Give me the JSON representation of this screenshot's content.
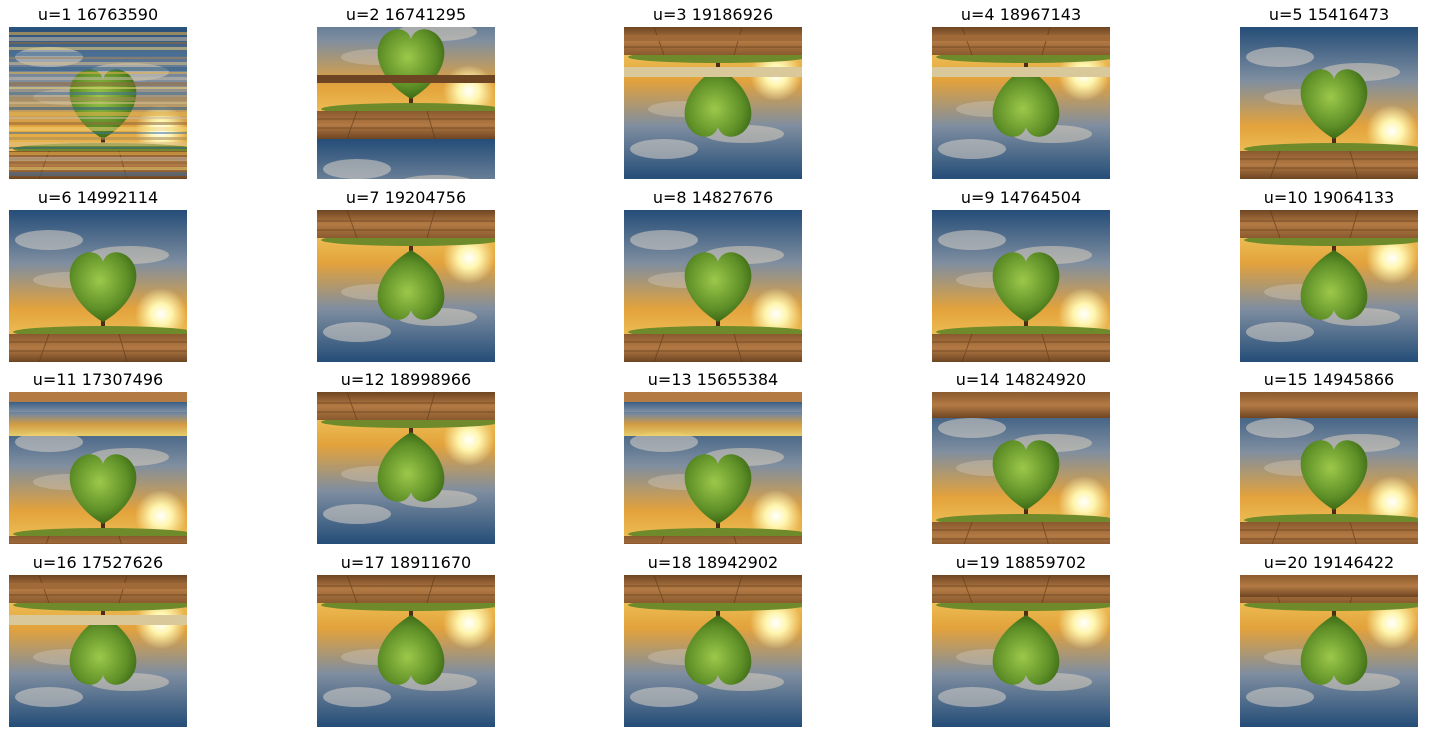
{
  "figure": {
    "panels": [
      {
        "label": "u=1 16763590",
        "variant": "scrambled"
      },
      {
        "label": "u=2 16741295",
        "variant": "split-sun-top"
      },
      {
        "label": "u=3 19186926",
        "variant": "flipped-split"
      },
      {
        "label": "u=4 18967143",
        "variant": "flipped-split"
      },
      {
        "label": "u=5 15416473",
        "variant": "upright"
      },
      {
        "label": "u=6 14992114",
        "variant": "upright"
      },
      {
        "label": "u=7 19204756",
        "variant": "flipped"
      },
      {
        "label": "u=8 14827676",
        "variant": "upright"
      },
      {
        "label": "u=9 14764504",
        "variant": "upright"
      },
      {
        "label": "u=10 19064133",
        "variant": "flipped"
      },
      {
        "label": "u=11 17307496",
        "variant": "split-bands"
      },
      {
        "label": "u=12 18998966",
        "variant": "flipped"
      },
      {
        "label": "u=13 15655384",
        "variant": "split-bands"
      },
      {
        "label": "u=14 14824920",
        "variant": "upright-wood-top"
      },
      {
        "label": "u=15 14945866",
        "variant": "upright-wood-top"
      },
      {
        "label": "u=16 17527626",
        "variant": "flipped-split"
      },
      {
        "label": "u=17 18911670",
        "variant": "flipped"
      },
      {
        "label": "u=18 18942902",
        "variant": "flipped"
      },
      {
        "label": "u=19 18859702",
        "variant": "flipped"
      },
      {
        "label": "u=20 19146422",
        "variant": "flipped-wood-top"
      }
    ]
  }
}
